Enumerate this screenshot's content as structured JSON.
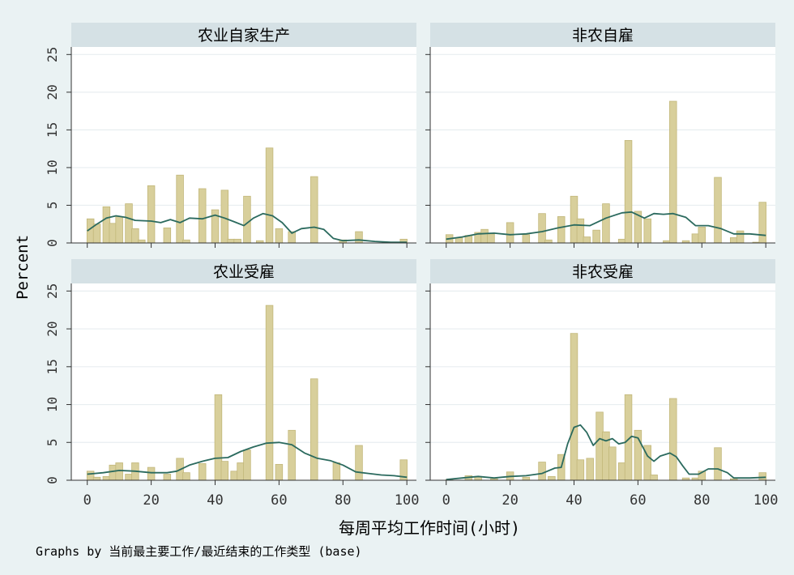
{
  "chart_data": {
    "type": "bar",
    "layout": "2x2 facets with shared axes",
    "ylabel": "Percent",
    "xlabel": "每周平均工作时间(小时)",
    "note": "Graphs by 当前最主要工作/最近结束的工作类型 (base)",
    "xlim": [
      -5,
      103
    ],
    "ylim": [
      0,
      26
    ],
    "x_ticks": [
      0,
      20,
      40,
      60,
      80,
      100
    ],
    "y_ticks": [
      0,
      5,
      10,
      15,
      20,
      25
    ],
    "bin_width": 2.2,
    "grid": true,
    "colors": {
      "background": "#eaf2f3",
      "plot_area": "#ffffff",
      "strip": "#d5e1e5",
      "bar_fill": "#d8cf9b",
      "bar_edge": "#c2b77a",
      "curve": "#2b6a5e",
      "grid": "#e8eef0",
      "axis": "#333333"
    },
    "panels": [
      {
        "title": "农业自家生产",
        "bars": [
          {
            "x": 1,
            "y": 3.2
          },
          {
            "x": 3,
            "y": 2.5
          },
          {
            "x": 6,
            "y": 4.8
          },
          {
            "x": 8,
            "y": 2.6
          },
          {
            "x": 10,
            "y": 3.5
          },
          {
            "x": 13,
            "y": 5.2
          },
          {
            "x": 15,
            "y": 1.9
          },
          {
            "x": 17,
            "y": 0.4
          },
          {
            "x": 20,
            "y": 7.6
          },
          {
            "x": 25,
            "y": 2.0
          },
          {
            "x": 29,
            "y": 9.0
          },
          {
            "x": 31,
            "y": 0.4
          },
          {
            "x": 36,
            "y": 7.2
          },
          {
            "x": 40,
            "y": 4.4
          },
          {
            "x": 43,
            "y": 7.0
          },
          {
            "x": 45,
            "y": 0.5
          },
          {
            "x": 47,
            "y": 0.5
          },
          {
            "x": 50,
            "y": 6.2
          },
          {
            "x": 54,
            "y": 0.3
          },
          {
            "x": 57,
            "y": 12.6
          },
          {
            "x": 60,
            "y": 1.9
          },
          {
            "x": 64,
            "y": 1.5
          },
          {
            "x": 71,
            "y": 8.8
          },
          {
            "x": 80,
            "y": 0.4
          },
          {
            "x": 85,
            "y": 1.5
          },
          {
            "x": 99,
            "y": 0.5
          }
        ],
        "density": [
          [
            0,
            1.6
          ],
          [
            3,
            2.5
          ],
          [
            6,
            3.3
          ],
          [
            9,
            3.6
          ],
          [
            12,
            3.4
          ],
          [
            15,
            3.0
          ],
          [
            20,
            2.9
          ],
          [
            23,
            2.7
          ],
          [
            26,
            3.1
          ],
          [
            29,
            2.7
          ],
          [
            32,
            3.3
          ],
          [
            36,
            3.2
          ],
          [
            40,
            3.7
          ],
          [
            43,
            3.3
          ],
          [
            46,
            2.8
          ],
          [
            49,
            2.3
          ],
          [
            52,
            3.3
          ],
          [
            55,
            3.9
          ],
          [
            58,
            3.6
          ],
          [
            61,
            2.7
          ],
          [
            64,
            1.3
          ],
          [
            67,
            1.9
          ],
          [
            71,
            2.1
          ],
          [
            74,
            1.8
          ],
          [
            77,
            0.6
          ],
          [
            80,
            0.3
          ],
          [
            85,
            0.4
          ],
          [
            90,
            0.2
          ],
          [
            95,
            0.1
          ],
          [
            100,
            0.1
          ]
        ]
      },
      {
        "title": "非农自雇",
        "bars": [
          {
            "x": 1,
            "y": 1.1
          },
          {
            "x": 4,
            "y": 0.7
          },
          {
            "x": 7,
            "y": 1.0
          },
          {
            "x": 10,
            "y": 1.4
          },
          {
            "x": 12,
            "y": 1.8
          },
          {
            "x": 14,
            "y": 1.2
          },
          {
            "x": 20,
            "y": 2.7
          },
          {
            "x": 25,
            "y": 1.1
          },
          {
            "x": 30,
            "y": 3.9
          },
          {
            "x": 32,
            "y": 0.4
          },
          {
            "x": 36,
            "y": 3.5
          },
          {
            "x": 40,
            "y": 6.2
          },
          {
            "x": 42,
            "y": 3.2
          },
          {
            "x": 44,
            "y": 0.8
          },
          {
            "x": 47,
            "y": 1.7
          },
          {
            "x": 50,
            "y": 5.2
          },
          {
            "x": 55,
            "y": 0.5
          },
          {
            "x": 57,
            "y": 13.6
          },
          {
            "x": 60,
            "y": 4.2
          },
          {
            "x": 63,
            "y": 3.2
          },
          {
            "x": 69,
            "y": 0.3
          },
          {
            "x": 71,
            "y": 18.8
          },
          {
            "x": 75,
            "y": 0.3
          },
          {
            "x": 78,
            "y": 1.2
          },
          {
            "x": 80,
            "y": 2.1
          },
          {
            "x": 85,
            "y": 8.7
          },
          {
            "x": 90,
            "y": 0.7
          },
          {
            "x": 92,
            "y": 1.6
          },
          {
            "x": 97,
            "y": 0.1
          },
          {
            "x": 99,
            "y": 5.4
          }
        ],
        "density": [
          [
            0,
            0.5
          ],
          [
            5,
            0.8
          ],
          [
            10,
            1.2
          ],
          [
            15,
            1.3
          ],
          [
            20,
            1.1
          ],
          [
            25,
            1.2
          ],
          [
            30,
            1.5
          ],
          [
            35,
            2.0
          ],
          [
            40,
            2.4
          ],
          [
            45,
            2.3
          ],
          [
            50,
            3.3
          ],
          [
            55,
            4.0
          ],
          [
            58,
            4.1
          ],
          [
            62,
            3.3
          ],
          [
            65,
            3.9
          ],
          [
            68,
            3.8
          ],
          [
            71,
            3.9
          ],
          [
            75,
            3.4
          ],
          [
            78,
            2.3
          ],
          [
            82,
            2.3
          ],
          [
            86,
            1.9
          ],
          [
            90,
            1.2
          ],
          [
            95,
            1.2
          ],
          [
            100,
            1.0
          ]
        ]
      },
      {
        "title": "农业受雇",
        "bars": [
          {
            "x": 1,
            "y": 1.2
          },
          {
            "x": 3,
            "y": 0.4
          },
          {
            "x": 6,
            "y": 0.5
          },
          {
            "x": 8,
            "y": 2.0
          },
          {
            "x": 10,
            "y": 2.3
          },
          {
            "x": 13,
            "y": 0.8
          },
          {
            "x": 15,
            "y": 2.3
          },
          {
            "x": 20,
            "y": 1.7
          },
          {
            "x": 25,
            "y": 0.8
          },
          {
            "x": 29,
            "y": 2.9
          },
          {
            "x": 31,
            "y": 1.0
          },
          {
            "x": 36,
            "y": 2.2
          },
          {
            "x": 41,
            "y": 11.3
          },
          {
            "x": 43,
            "y": 2.5
          },
          {
            "x": 46,
            "y": 1.2
          },
          {
            "x": 48,
            "y": 2.3
          },
          {
            "x": 50,
            "y": 4.0
          },
          {
            "x": 57,
            "y": 23.1
          },
          {
            "x": 60,
            "y": 2.1
          },
          {
            "x": 64,
            "y": 6.6
          },
          {
            "x": 71,
            "y": 13.4
          },
          {
            "x": 78,
            "y": 2.3
          },
          {
            "x": 85,
            "y": 4.6
          },
          {
            "x": 99,
            "y": 2.7
          }
        ],
        "density": [
          [
            0,
            0.8
          ],
          [
            5,
            1.0
          ],
          [
            10,
            1.3
          ],
          [
            15,
            1.2
          ],
          [
            20,
            1.0
          ],
          [
            25,
            1.0
          ],
          [
            28,
            1.2
          ],
          [
            32,
            2.0
          ],
          [
            36,
            2.5
          ],
          [
            40,
            2.9
          ],
          [
            44,
            3.0
          ],
          [
            48,
            3.8
          ],
          [
            52,
            4.4
          ],
          [
            56,
            4.9
          ],
          [
            60,
            5.0
          ],
          [
            64,
            4.7
          ],
          [
            68,
            3.6
          ],
          [
            72,
            2.9
          ],
          [
            76,
            2.6
          ],
          [
            80,
            2.0
          ],
          [
            84,
            1.1
          ],
          [
            88,
            0.9
          ],
          [
            92,
            0.7
          ],
          [
            96,
            0.6
          ],
          [
            100,
            0.4
          ]
        ]
      },
      {
        "title": "非农受雇",
        "bars": [
          {
            "x": 1,
            "y": 0.1
          },
          {
            "x": 7,
            "y": 0.6
          },
          {
            "x": 10,
            "y": 0.5
          },
          {
            "x": 15,
            "y": 0.2
          },
          {
            "x": 20,
            "y": 1.1
          },
          {
            "x": 25,
            "y": 0.4
          },
          {
            "x": 30,
            "y": 2.4
          },
          {
            "x": 33,
            "y": 0.5
          },
          {
            "x": 36,
            "y": 3.4
          },
          {
            "x": 40,
            "y": 19.4
          },
          {
            "x": 42,
            "y": 2.7
          },
          {
            "x": 45,
            "y": 2.9
          },
          {
            "x": 48,
            "y": 9.0
          },
          {
            "x": 50,
            "y": 6.4
          },
          {
            "x": 52,
            "y": 4.4
          },
          {
            "x": 55,
            "y": 2.3
          },
          {
            "x": 57,
            "y": 11.3
          },
          {
            "x": 60,
            "y": 6.6
          },
          {
            "x": 63,
            "y": 4.6
          },
          {
            "x": 65,
            "y": 0.7
          },
          {
            "x": 71,
            "y": 10.8
          },
          {
            "x": 75,
            "y": 0.3
          },
          {
            "x": 78,
            "y": 0.3
          },
          {
            "x": 80,
            "y": 1.2
          },
          {
            "x": 85,
            "y": 4.3
          },
          {
            "x": 90,
            "y": 0.2
          },
          {
            "x": 99,
            "y": 1.0
          }
        ],
        "density": [
          [
            0,
            0.1
          ],
          [
            5,
            0.3
          ],
          [
            10,
            0.5
          ],
          [
            15,
            0.3
          ],
          [
            20,
            0.5
          ],
          [
            25,
            0.6
          ],
          [
            30,
            0.9
          ],
          [
            34,
            1.6
          ],
          [
            36,
            1.7
          ],
          [
            38,
            4.8
          ],
          [
            40,
            7.0
          ],
          [
            42,
            7.3
          ],
          [
            44,
            6.3
          ],
          [
            46,
            4.6
          ],
          [
            48,
            5.5
          ],
          [
            50,
            5.2
          ],
          [
            52,
            5.5
          ],
          [
            54,
            4.8
          ],
          [
            56,
            5.0
          ],
          [
            58,
            5.8
          ],
          [
            60,
            5.6
          ],
          [
            63,
            3.2
          ],
          [
            65,
            2.5
          ],
          [
            67,
            3.2
          ],
          [
            70,
            3.6
          ],
          [
            72,
            3.1
          ],
          [
            74,
            1.9
          ],
          [
            76,
            0.8
          ],
          [
            79,
            0.8
          ],
          [
            82,
            1.5
          ],
          [
            85,
            1.5
          ],
          [
            88,
            1.0
          ],
          [
            90,
            0.3
          ],
          [
            95,
            0.3
          ],
          [
            100,
            0.4
          ]
        ]
      }
    ]
  }
}
